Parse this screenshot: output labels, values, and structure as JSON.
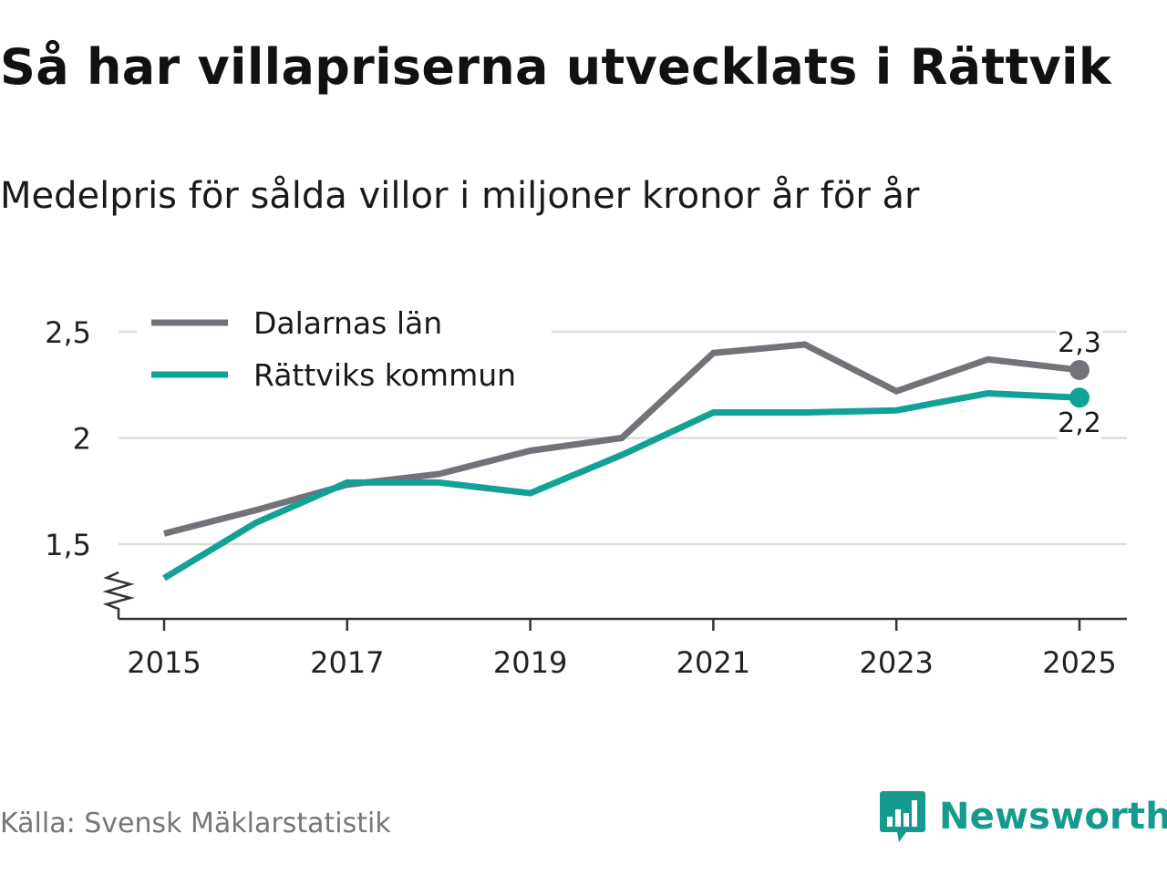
{
  "header": {
    "title": "Så har villapriserna utvecklats i Rättvik",
    "subtitle": "Medelpris för sålda villor i miljoner kronor år för år"
  },
  "footer": {
    "source": "Källa: Svensk Mäklarstatistik",
    "brand": "Newsworthy",
    "brand_icon": "newsworthy-logo-icon"
  },
  "colors": {
    "dalarna": "#747279",
    "rattvik": "#12a196",
    "grid": "#dddddd",
    "axis": "#333333"
  },
  "chart_data": {
    "type": "line",
    "title": "Så har villapriserna utvecklats i Rättvik",
    "subtitle": "Medelpris för sålda villor i miljoner kronor år för år",
    "xlabel": "",
    "ylabel": "",
    "x": [
      2015,
      2016,
      2017,
      2018,
      2019,
      2020,
      2021,
      2022,
      2023,
      2024,
      2025
    ],
    "xticks": [
      "2015",
      "2017",
      "2019",
      "2021",
      "2023",
      "2025"
    ],
    "yticks": [
      1.5,
      2,
      2.5
    ],
    "ytick_labels": [
      "1,5",
      "2",
      "2,5"
    ],
    "ylim": [
      1.15,
      2.65
    ],
    "grid": true,
    "axis_break": true,
    "legend_position": "top-left",
    "series": [
      {
        "name": "Dalarnas län",
        "color_key": "dalarna",
        "values": [
          1.55,
          1.66,
          1.78,
          1.83,
          1.94,
          2.0,
          2.4,
          2.44,
          2.22,
          2.37,
          2.32
        ],
        "end_label": "2,3"
      },
      {
        "name": "Rättviks kommun",
        "color_key": "rattvik",
        "values": [
          1.34,
          1.6,
          1.79,
          1.79,
          1.74,
          1.92,
          2.12,
          2.12,
          2.13,
          2.21,
          2.19
        ],
        "end_label": "2,2"
      }
    ]
  }
}
